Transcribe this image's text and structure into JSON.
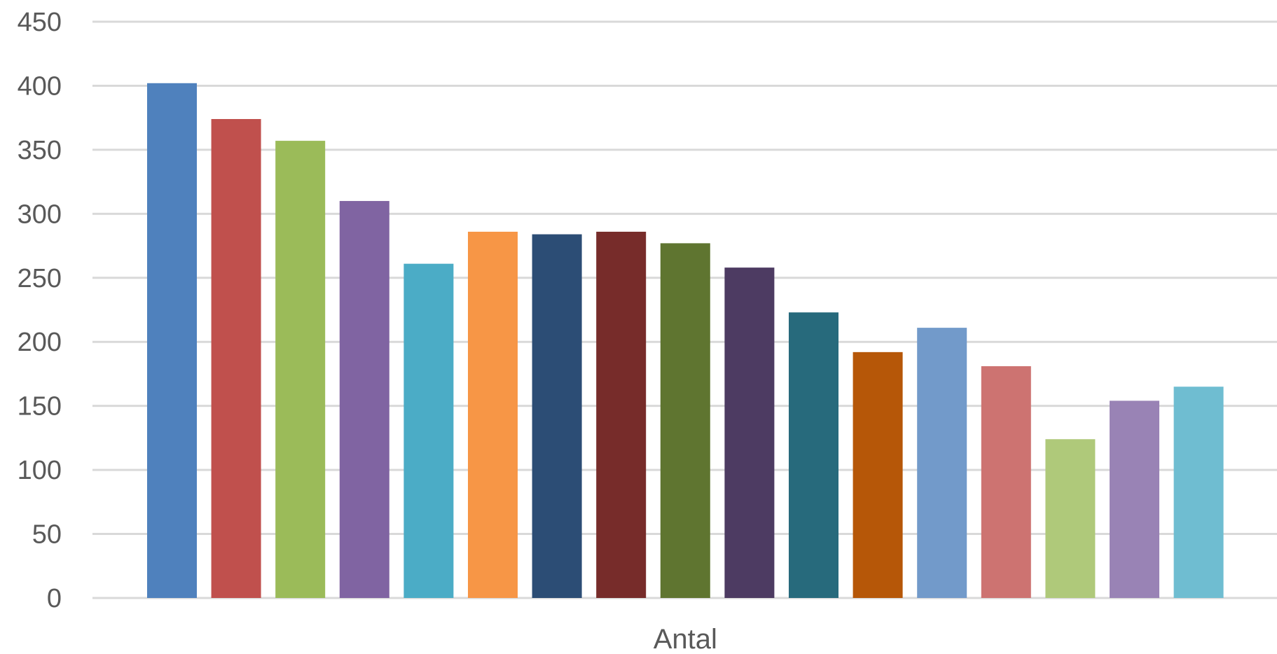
{
  "chart_data": {
    "type": "bar",
    "categories": [
      "Antal"
    ],
    "series": [
      {
        "value": 402,
        "color": "#4F81BD"
      },
      {
        "value": 374,
        "color": "#C0504D"
      },
      {
        "value": 357,
        "color": "#9BBB59"
      },
      {
        "value": 310,
        "color": "#8064A2"
      },
      {
        "value": 261,
        "color": "#4BACC6"
      },
      {
        "value": 286,
        "color": "#F79646"
      },
      {
        "value": 284,
        "color": "#2C4D75"
      },
      {
        "value": 286,
        "color": "#772C2A"
      },
      {
        "value": 277,
        "color": "#5F7530"
      },
      {
        "value": 258,
        "color": "#4D3B62"
      },
      {
        "value": 223,
        "color": "#276A7C"
      },
      {
        "value": 192,
        "color": "#B65708"
      },
      {
        "value": 211,
        "color": "#729ACA"
      },
      {
        "value": 181,
        "color": "#CD7371"
      },
      {
        "value": 124,
        "color": "#AFC97A"
      },
      {
        "value": 154,
        "color": "#9983B5"
      },
      {
        "value": 165,
        "color": "#6FBDD1"
      }
    ],
    "ylim": [
      0,
      450
    ],
    "yticks": [
      0,
      50,
      100,
      150,
      200,
      250,
      300,
      350,
      400,
      450
    ],
    "grid": true,
    "xlabel": ""
  }
}
